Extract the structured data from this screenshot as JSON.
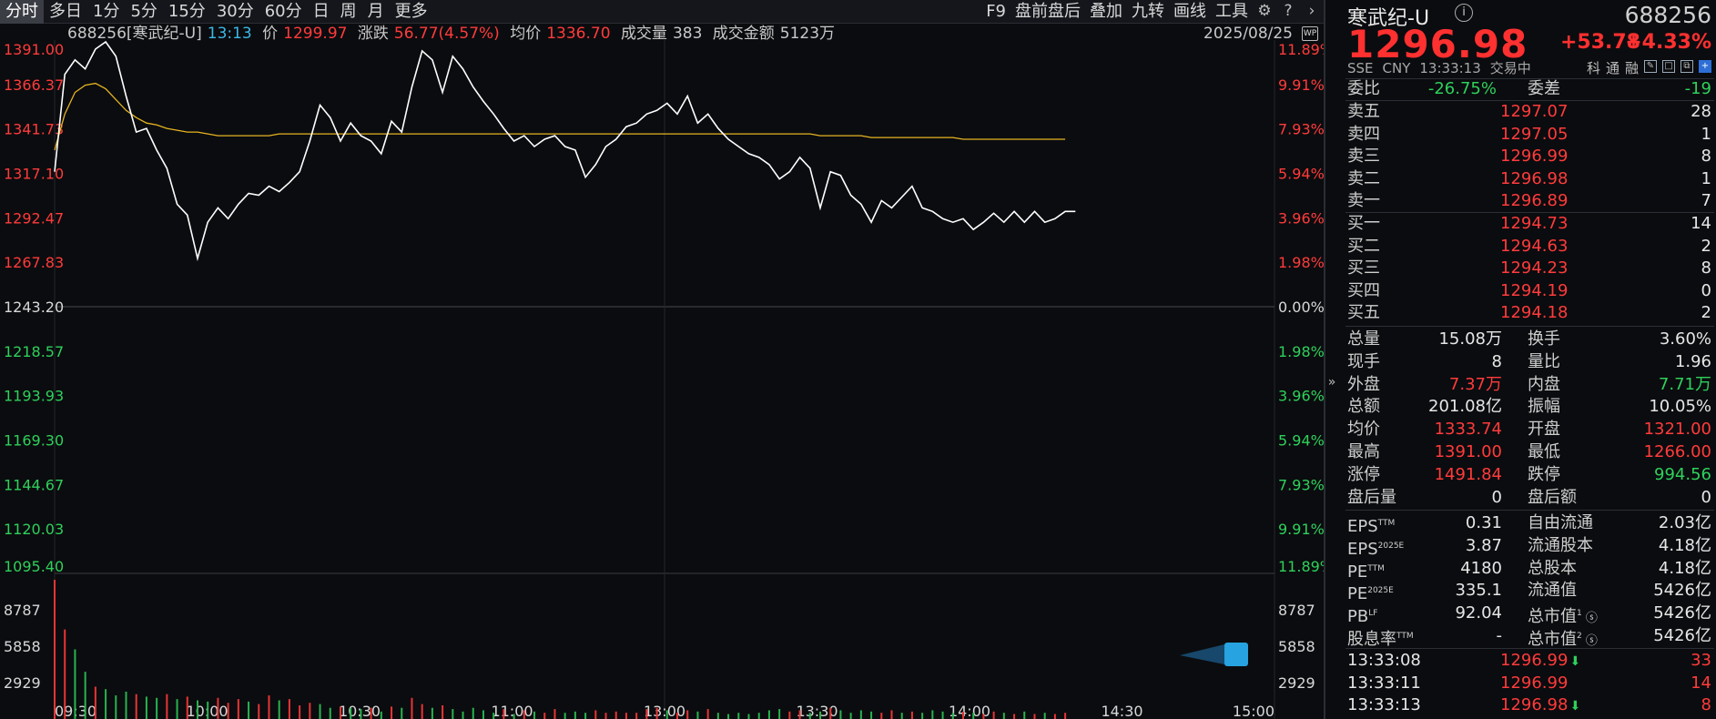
{
  "toolbar": {
    "periods": [
      "分时",
      "多日",
      "1分",
      "5分",
      "15分",
      "30分",
      "60分",
      "日",
      "周",
      "月",
      "更多"
    ],
    "right_items": [
      "F9",
      "盘前盘后",
      "叠加",
      "九转",
      "画线",
      "工具"
    ],
    "gear_icon": "gear-icon",
    "help_icon": "help-icon",
    "next_icon": "chevron-right-icon"
  },
  "infoline": {
    "symbol": "688256[寒武纪-U]",
    "time": "13:13",
    "price_label": "价",
    "price": "1299.97",
    "change_label": "涨跌",
    "change": "56.77(4.57%)",
    "avg_label": "均价",
    "avg": "1336.70",
    "vol_label": "成交量",
    "vol": "383",
    "amt_label": "成交金额",
    "amt": "5123万",
    "date": "2025/08/25",
    "wp_badge": "WP"
  },
  "chart_data": {
    "type": "line",
    "prev_close": 1243.2,
    "price_axis": {
      "left_labels": [
        "1391.00",
        "1366.37",
        "1341.73",
        "1317.10",
        "1292.47",
        "1267.83",
        "1243.20",
        "1218.57",
        "1193.93",
        "1169.30",
        "1144.67",
        "1120.03",
        "1095.40"
      ],
      "right_labels": [
        "11.89%",
        "9.91%",
        "7.93%",
        "5.94%",
        "3.96%",
        "1.98%",
        "0.00%",
        "1.98%",
        "3.96%",
        "5.94%",
        "7.93%",
        "9.91%",
        "11.89%"
      ],
      "ylim": [
        1095.4,
        1391.0
      ]
    },
    "volume_axis": {
      "labels": [
        "8787",
        "5858",
        "2929"
      ],
      "ylim": [
        0,
        11716
      ]
    },
    "x_labels": [
      "09:30",
      "10:00",
      "10:30",
      "11:00",
      "13:00",
      "13:30",
      "14:00",
      "14:30",
      "15:00"
    ],
    "series": [
      {
        "name": "price",
        "values": [
          1318,
          1372,
          1380,
          1375,
          1386,
          1390,
          1382,
          1360,
          1340,
          1342,
          1330,
          1320,
          1300,
          1294,
          1270,
          1290,
          1298,
          1292,
          1300,
          1306,
          1305,
          1310,
          1307,
          1312,
          1318,
          1335,
          1355,
          1348,
          1335,
          1345,
          1338,
          1335,
          1328,
          1346,
          1340,
          1365,
          1385,
          1380,
          1362,
          1382,
          1375,
          1365,
          1357,
          1350,
          1342,
          1335,
          1338,
          1332,
          1336,
          1338,
          1332,
          1330,
          1315,
          1322,
          1332,
          1336,
          1343,
          1345,
          1350,
          1352,
          1356,
          1350,
          1360,
          1345,
          1350,
          1342,
          1336,
          1332,
          1328,
          1326,
          1322,
          1314,
          1318,
          1326,
          1320,
          1298,
          1318,
          1316,
          1305,
          1300,
          1290,
          1302,
          1298,
          1304,
          1310,
          1298,
          1296,
          1292,
          1290,
          1292,
          1286,
          1290,
          1295,
          1290,
          1296,
          1290,
          1296,
          1290,
          1292,
          1296,
          1296
        ]
      },
      {
        "name": "avg",
        "values": [
          1330,
          1350,
          1362,
          1366,
          1367,
          1364,
          1358,
          1352,
          1348,
          1345,
          1344,
          1342,
          1341,
          1340,
          1340,
          1339,
          1338,
          1338,
          1338,
          1338,
          1338,
          1338,
          1339,
          1339,
          1339,
          1339,
          1339,
          1339,
          1339,
          1339,
          1339,
          1339,
          1339,
          1339,
          1339,
          1339,
          1339,
          1339,
          1339,
          1339,
          1339,
          1339,
          1339,
          1339,
          1339,
          1339,
          1339,
          1339,
          1339,
          1339,
          1339,
          1339,
          1339,
          1339,
          1339,
          1339,
          1339,
          1339,
          1339,
          1339,
          1339,
          1339,
          1339,
          1339,
          1339,
          1339,
          1339,
          1339,
          1339,
          1339,
          1339,
          1339,
          1339,
          1339,
          1339,
          1338,
          1338,
          1338,
          1338,
          1338,
          1337,
          1337,
          1337,
          1337,
          1337,
          1337,
          1337,
          1337,
          1337,
          1336,
          1336,
          1336,
          1336,
          1336,
          1336,
          1336,
          1336,
          1336,
          1336,
          1336
        ]
      }
    ],
    "volumes": [
      11200,
      7200,
      5600,
      3800,
      2600,
      2400,
      1900,
      2200,
      2000,
      1800,
      1700,
      2000,
      1600,
      1800,
      1500,
      1400,
      1700,
      1300,
      1600,
      1400,
      1200,
      1900,
      1500,
      1600,
      1100,
      1300,
      1200,
      900,
      1000,
      900,
      800,
      900,
      600,
      1000,
      900,
      1700,
      1200,
      900,
      1100,
      800,
      600,
      900,
      700,
      500,
      800,
      400,
      700,
      600,
      500,
      800,
      500,
      600,
      500,
      700,
      500,
      600,
      500,
      500,
      800,
      900,
      700,
      500,
      700,
      600,
      800,
      500,
      400,
      500,
      400,
      500,
      700,
      800,
      600,
      700,
      500,
      600,
      900,
      700,
      500,
      700,
      600,
      500,
      700,
      500,
      600,
      500,
      700,
      600,
      500,
      600,
      500,
      400,
      600,
      500,
      400,
      600,
      400,
      500,
      400,
      500
    ],
    "volume_colors": [
      "red",
      "red",
      "green",
      "green",
      "red",
      "green",
      "green",
      "green",
      "red",
      "green",
      "green",
      "red",
      "green",
      "red",
      "green",
      "green",
      "red",
      "red",
      "red",
      "green",
      "red",
      "red",
      "green",
      "red",
      "red",
      "red",
      "green",
      "green",
      "red",
      "green",
      "green",
      "red",
      "green",
      "red",
      "green",
      "red",
      "red",
      "green",
      "red",
      "green",
      "green",
      "green",
      "green",
      "green",
      "red",
      "green",
      "red",
      "green",
      "red",
      "red",
      "green",
      "green",
      "green",
      "red",
      "red",
      "red",
      "red",
      "red",
      "red",
      "red",
      "green",
      "red",
      "red",
      "green",
      "red",
      "green",
      "green",
      "green",
      "green",
      "green",
      "green",
      "green",
      "red",
      "red",
      "green",
      "green",
      "red",
      "green",
      "green",
      "green",
      "green",
      "red",
      "red",
      "green",
      "red",
      "green",
      "green",
      "green",
      "green",
      "red",
      "green",
      "red",
      "red",
      "green",
      "red",
      "green",
      "red",
      "green",
      "red",
      "red"
    ]
  },
  "panel": {
    "name": "寒武纪-U",
    "code": "688256",
    "price": "1296.98",
    "change": "+53.78",
    "change_pct": "+4.33%",
    "exchange": "SSE",
    "currency": "CNY",
    "time": "13:33:13",
    "status": "交易中",
    "tags": [
      "科",
      "通",
      "融"
    ],
    "weibi_label": "委比",
    "weibi": "-26.75%",
    "weicha_label": "委差",
    "weicha": "-19",
    "asks": [
      {
        "label": "卖五",
        "price": "1297.07",
        "vol": "28"
      },
      {
        "label": "卖四",
        "price": "1297.05",
        "vol": "1"
      },
      {
        "label": "卖三",
        "price": "1296.99",
        "vol": "8"
      },
      {
        "label": "卖二",
        "price": "1296.98",
        "vol": "1"
      },
      {
        "label": "卖一",
        "price": "1296.89",
        "vol": "7"
      }
    ],
    "bids": [
      {
        "label": "买一",
        "price": "1294.73",
        "vol": "14"
      },
      {
        "label": "买二",
        "price": "1294.63",
        "vol": "2"
      },
      {
        "label": "买三",
        "price": "1294.23",
        "vol": "8"
      },
      {
        "label": "买四",
        "price": "1294.19",
        "vol": "0"
      },
      {
        "label": "买五",
        "price": "1294.18",
        "vol": "2"
      }
    ],
    "stats": [
      {
        "l1": "总量",
        "v1": "15.08万",
        "c1": "white",
        "l2": "换手",
        "v2": "3.60%",
        "c2": "white"
      },
      {
        "l1": "现手",
        "v1": "8",
        "c1": "white",
        "l2": "量比",
        "v2": "1.96",
        "c2": "white"
      },
      {
        "l1": "外盘",
        "v1": "7.37万",
        "c1": "red",
        "l2": "内盘",
        "v2": "7.71万",
        "c2": "green"
      },
      {
        "l1": "总额",
        "v1": "201.08亿",
        "c1": "white",
        "l2": "振幅",
        "v2": "10.05%",
        "c2": "white"
      },
      {
        "l1": "均价",
        "v1": "1333.74",
        "c1": "red",
        "l2": "开盘",
        "v2": "1321.00",
        "c2": "red"
      },
      {
        "l1": "最高",
        "v1": "1391.00",
        "c1": "red",
        "l2": "最低",
        "v2": "1266.00",
        "c2": "red"
      },
      {
        "l1": "涨停",
        "v1": "1491.84",
        "c1": "red",
        "l2": "跌停",
        "v2": "994.56",
        "c2": "green"
      },
      {
        "l1": "盘后量",
        "v1": "0",
        "c1": "white",
        "l2": "盘后额",
        "v2": "0",
        "c2": "white"
      }
    ],
    "fundamentals": [
      {
        "l1": "EPS",
        "s1": "TTM",
        "v1": "0.31",
        "l2": "自由流通",
        "s2": "",
        "v2": "2.03亿"
      },
      {
        "l1": "EPS",
        "s1": "2025E",
        "v1": "3.87",
        "l2": "流通股本",
        "s2": "",
        "v2": "4.18亿"
      },
      {
        "l1": "PE",
        "s1": "TTM",
        "v1": "4180",
        "l2": "总股本",
        "s2": "",
        "v2": "4.18亿"
      },
      {
        "l1": "PE",
        "s1": "2025E",
        "v1": "335.1",
        "l2": "流通值",
        "s2": "",
        "v2": "5426亿"
      },
      {
        "l1": "PB",
        "s1": "LF",
        "v1": "92.04",
        "l2": "总市值",
        "s2": "1",
        "v2": "5426亿"
      },
      {
        "l1": "股息率",
        "s1": "TTM",
        "v1": "-",
        "l2": "总市值",
        "s2": "2",
        "v2": "5426亿"
      }
    ],
    "ticks": [
      {
        "time": "13:33:08",
        "price": "1296.99",
        "vol": "33",
        "down": true
      },
      {
        "time": "13:33:11",
        "price": "1296.99",
        "vol": "14",
        "down": false
      },
      {
        "time": "13:33:13",
        "price": "1296.98",
        "vol": "8",
        "down": true
      }
    ]
  }
}
